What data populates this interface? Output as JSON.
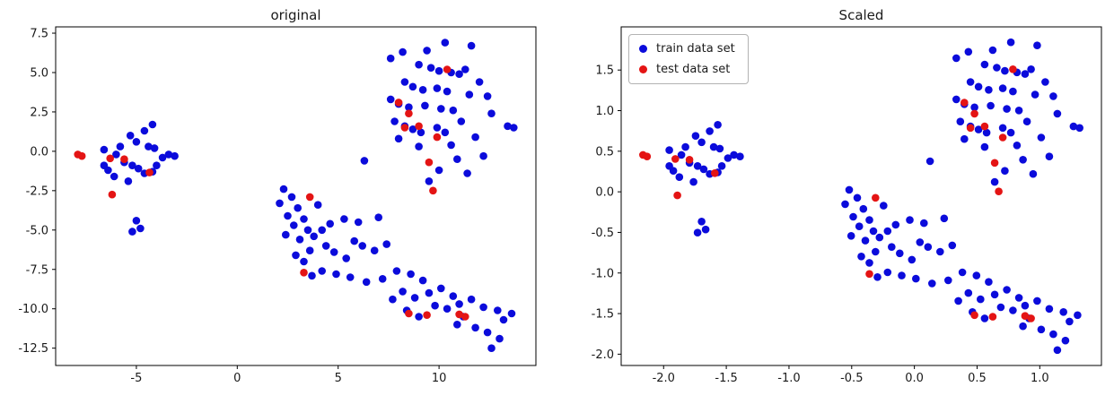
{
  "figure": {
    "background": "#ffffff",
    "train_color": "#0b0bdb",
    "test_color": "#e41414"
  },
  "chart_data": [
    {
      "id": "original",
      "type": "scatter",
      "title": "original",
      "xlabel": "",
      "ylabel": "",
      "grid": false,
      "xlim": [
        -9.0,
        14.8
      ],
      "ylim": [
        -13.6,
        7.9
      ],
      "x_ticks": [
        "-5",
        "0",
        "5",
        "10"
      ],
      "y_ticks": [
        "7.5",
        "5.0",
        "2.5",
        "0.0",
        "-2.5",
        "-5.0",
        "-7.5",
        "-10.0",
        "-12.5"
      ],
      "legend": null,
      "series": [
        {
          "name": "train data set",
          "color": "#0b0bdb",
          "marker": "circle",
          "points": [
            [
              -6.6,
              0.1
            ],
            [
              -6.0,
              -0.2
            ],
            [
              -5.8,
              0.3
            ],
            [
              -5.3,
              1.0
            ],
            [
              -4.6,
              1.3
            ],
            [
              -4.2,
              1.7
            ],
            [
              -5.0,
              0.6
            ],
            [
              -4.4,
              0.3
            ],
            [
              -3.4,
              -0.2
            ],
            [
              -3.1,
              -0.3
            ],
            [
              -3.7,
              -0.4
            ],
            [
              -5.6,
              -0.7
            ],
            [
              -5.2,
              -0.9
            ],
            [
              -4.9,
              -1.1
            ],
            [
              -4.6,
              -1.4
            ],
            [
              -4.2,
              -1.3
            ],
            [
              -6.4,
              -1.2
            ],
            [
              -6.1,
              -1.6
            ],
            [
              -5.4,
              -1.9
            ],
            [
              -4.0,
              -0.9
            ],
            [
              -5.0,
              -4.4
            ],
            [
              -4.8,
              -4.9
            ],
            [
              -5.2,
              -5.1
            ],
            [
              -6.6,
              -0.9
            ],
            [
              -4.1,
              0.2
            ],
            [
              7.6,
              5.9
            ],
            [
              8.2,
              6.3
            ],
            [
              9.4,
              6.4
            ],
            [
              10.3,
              6.9
            ],
            [
              11.6,
              6.7
            ],
            [
              9.0,
              5.5
            ],
            [
              9.6,
              5.3
            ],
            [
              10.0,
              5.1
            ],
            [
              10.6,
              5.0
            ],
            [
              11.0,
              4.9
            ],
            [
              11.3,
              5.2
            ],
            [
              12.0,
              4.4
            ],
            [
              8.3,
              4.4
            ],
            [
              8.7,
              4.1
            ],
            [
              9.2,
              3.9
            ],
            [
              9.9,
              4.0
            ],
            [
              10.4,
              3.8
            ],
            [
              11.5,
              3.6
            ],
            [
              12.4,
              3.5
            ],
            [
              7.6,
              3.3
            ],
            [
              8.0,
              3.0
            ],
            [
              8.5,
              2.8
            ],
            [
              9.3,
              2.9
            ],
            [
              10.1,
              2.7
            ],
            [
              10.7,
              2.6
            ],
            [
              12.6,
              2.4
            ],
            [
              13.4,
              1.6
            ],
            [
              13.7,
              1.5
            ],
            [
              7.8,
              1.9
            ],
            [
              8.3,
              1.6
            ],
            [
              8.7,
              1.4
            ],
            [
              9.1,
              1.2
            ],
            [
              9.9,
              1.5
            ],
            [
              10.3,
              1.2
            ],
            [
              11.1,
              1.9
            ],
            [
              11.8,
              0.9
            ],
            [
              12.2,
              -0.3
            ],
            [
              10.9,
              -0.5
            ],
            [
              10.0,
              -1.2
            ],
            [
              9.0,
              0.3
            ],
            [
              8.0,
              0.8
            ],
            [
              6.3,
              -0.6
            ],
            [
              9.5,
              -1.9
            ],
            [
              11.4,
              -1.4
            ],
            [
              10.6,
              0.4
            ],
            [
              2.3,
              -2.4
            ],
            [
              2.7,
              -2.9
            ],
            [
              2.1,
              -3.3
            ],
            [
              3.0,
              -3.6
            ],
            [
              2.5,
              -4.1
            ],
            [
              3.3,
              -4.3
            ],
            [
              2.8,
              -4.7
            ],
            [
              3.5,
              -5.0
            ],
            [
              2.4,
              -5.3
            ],
            [
              3.1,
              -5.6
            ],
            [
              3.8,
              -5.4
            ],
            [
              4.2,
              -5.0
            ],
            [
              4.6,
              -4.6
            ],
            [
              5.3,
              -4.3
            ],
            [
              4.0,
              -3.4
            ],
            [
              5.8,
              -5.7
            ],
            [
              4.4,
              -6.0
            ],
            [
              3.6,
              -6.3
            ],
            [
              2.9,
              -6.6
            ],
            [
              3.3,
              -7.0
            ],
            [
              4.8,
              -6.4
            ],
            [
              5.4,
              -6.8
            ],
            [
              6.2,
              -6.0
            ],
            [
              6.8,
              -6.3
            ],
            [
              7.4,
              -5.9
            ],
            [
              6.0,
              -4.5
            ],
            [
              7.0,
              -4.2
            ],
            [
              4.2,
              -7.6
            ],
            [
              3.7,
              -7.9
            ],
            [
              4.9,
              -7.8
            ],
            [
              5.6,
              -8.0
            ],
            [
              6.4,
              -8.3
            ],
            [
              7.2,
              -8.1
            ],
            [
              7.9,
              -7.6
            ],
            [
              8.6,
              -7.8
            ],
            [
              9.2,
              -8.2
            ],
            [
              8.2,
              -8.9
            ],
            [
              8.8,
              -9.3
            ],
            [
              9.5,
              -9.0
            ],
            [
              10.1,
              -8.7
            ],
            [
              10.7,
              -9.2
            ],
            [
              9.8,
              -9.8
            ],
            [
              10.4,
              -10.0
            ],
            [
              11.0,
              -9.7
            ],
            [
              11.6,
              -9.4
            ],
            [
              12.2,
              -9.9
            ],
            [
              8.4,
              -10.1
            ],
            [
              9.0,
              -10.5
            ],
            [
              11.2,
              -10.5
            ],
            [
              12.9,
              -10.1
            ],
            [
              13.6,
              -10.3
            ],
            [
              13.2,
              -10.7
            ],
            [
              11.8,
              -11.2
            ],
            [
              12.4,
              -11.5
            ],
            [
              13.0,
              -11.9
            ],
            [
              12.6,
              -12.5
            ],
            [
              10.9,
              -11.0
            ],
            [
              7.7,
              -9.4
            ]
          ]
        },
        {
          "name": "test data set",
          "color": "#e41414",
          "marker": "circle",
          "points": [
            [
              -7.9,
              -0.2
            ],
            [
              -7.7,
              -0.3
            ],
            [
              -6.3,
              -0.45
            ],
            [
              -5.6,
              -0.5
            ],
            [
              -4.35,
              -1.35
            ],
            [
              -6.2,
              -2.75
            ],
            [
              8.0,
              3.1
            ],
            [
              8.5,
              2.4
            ],
            [
              8.3,
              1.5
            ],
            [
              9.0,
              1.6
            ],
            [
              10.4,
              5.2
            ],
            [
              9.9,
              0.9
            ],
            [
              9.5,
              -0.7
            ],
            [
              9.7,
              -2.5
            ],
            [
              3.6,
              -2.9
            ],
            [
              3.3,
              -7.7
            ],
            [
              8.5,
              -10.3
            ],
            [
              9.4,
              -10.4
            ],
            [
              11.3,
              -10.5
            ],
            [
              11.0,
              -10.35
            ]
          ]
        }
      ]
    },
    {
      "id": "scaled",
      "type": "scatter",
      "title": "Scaled",
      "xlabel": "",
      "ylabel": "",
      "grid": false,
      "x_ticks": [
        "-2.0",
        "-1.5",
        "-1.0",
        "-0.5",
        "0.0",
        "0.5",
        "1.0",
        "1.5"
      ],
      "y_ticks": [
        "1.5",
        "1.0",
        "0.5",
        "0.0",
        "-0.5",
        "-1.0",
        "-1.5",
        "-2.0"
      ],
      "legend": {
        "position": "upper left",
        "entries": [
          "train data set",
          "test data set"
        ]
      },
      "derived": {
        "from": "original",
        "method": "standardize"
      }
    }
  ]
}
